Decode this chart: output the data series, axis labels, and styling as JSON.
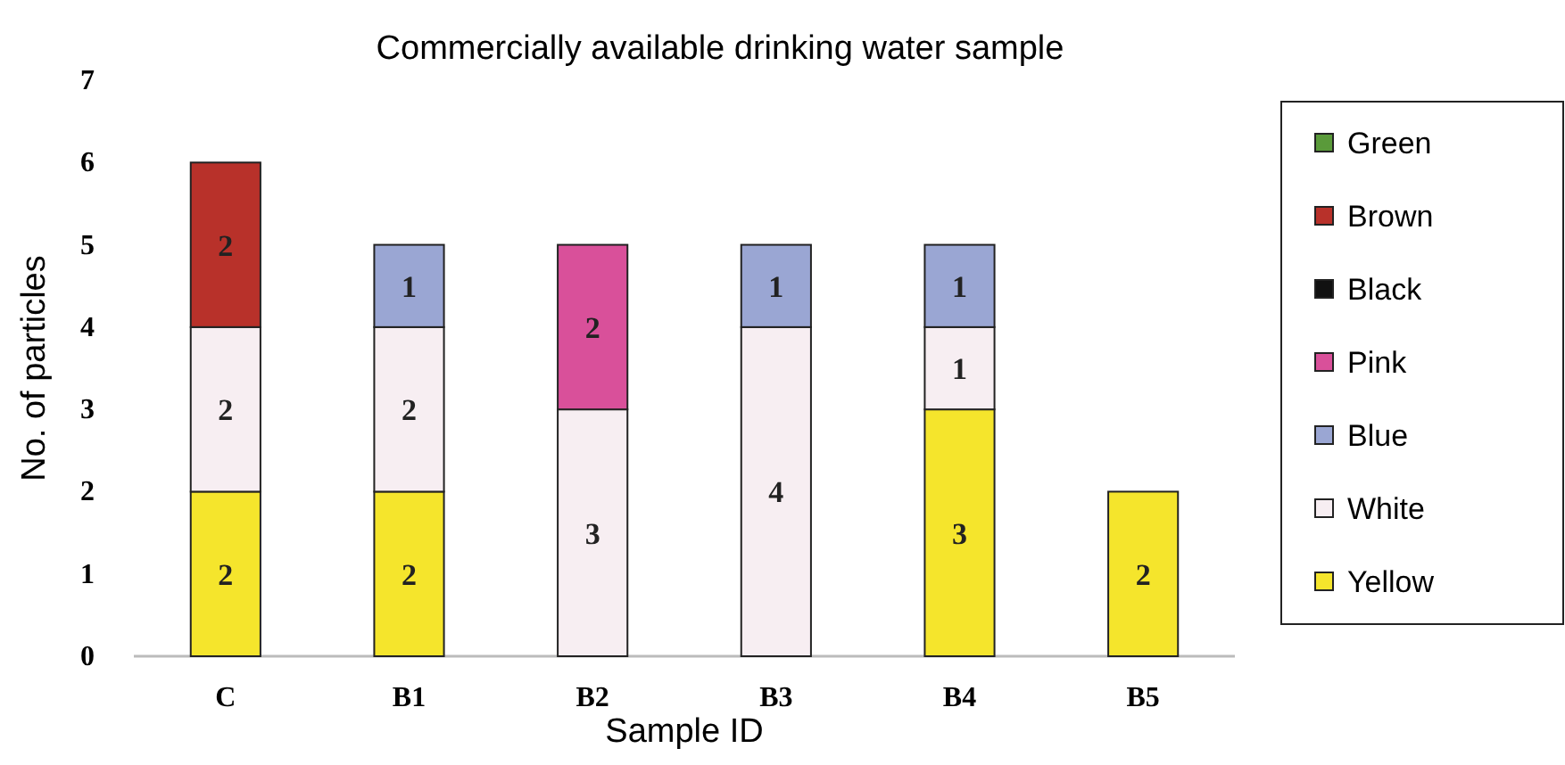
{
  "chart_data": {
    "type": "bar",
    "title": "Commercially available drinking water sample",
    "xlabel": "Sample ID",
    "ylabel": "No. of particles",
    "categories": [
      "C",
      "B1",
      "B2",
      "B3",
      "B4",
      "B5"
    ],
    "stacked": true,
    "data_labels": true,
    "legend": "right",
    "grid": false,
    "ylim": [
      0,
      7
    ],
    "yticks": [
      0,
      1,
      2,
      3,
      4,
      5,
      6,
      7
    ],
    "series": [
      {
        "name": "Yellow",
        "color": "#f5e52c",
        "values": [
          2,
          2,
          null,
          null,
          3,
          2
        ]
      },
      {
        "name": "White",
        "color": "#f7eef2",
        "values": [
          2,
          2,
          3,
          4,
          1,
          null
        ]
      },
      {
        "name": "Blue",
        "color": "#9aa6d3",
        "values": [
          null,
          1,
          null,
          1,
          1,
          null
        ]
      },
      {
        "name": "Pink",
        "color": "#d9509a",
        "values": [
          null,
          null,
          2,
          null,
          null,
          null
        ]
      },
      {
        "name": "Black",
        "color": "#111111",
        "values": [
          null,
          null,
          null,
          null,
          null,
          null
        ]
      },
      {
        "name": "Brown",
        "color": "#b8312a",
        "values": [
          2,
          null,
          null,
          null,
          null,
          null
        ]
      },
      {
        "name": "Green",
        "color": "#5a9a3a",
        "values": [
          null,
          null,
          null,
          null,
          null,
          null
        ]
      }
    ]
  }
}
